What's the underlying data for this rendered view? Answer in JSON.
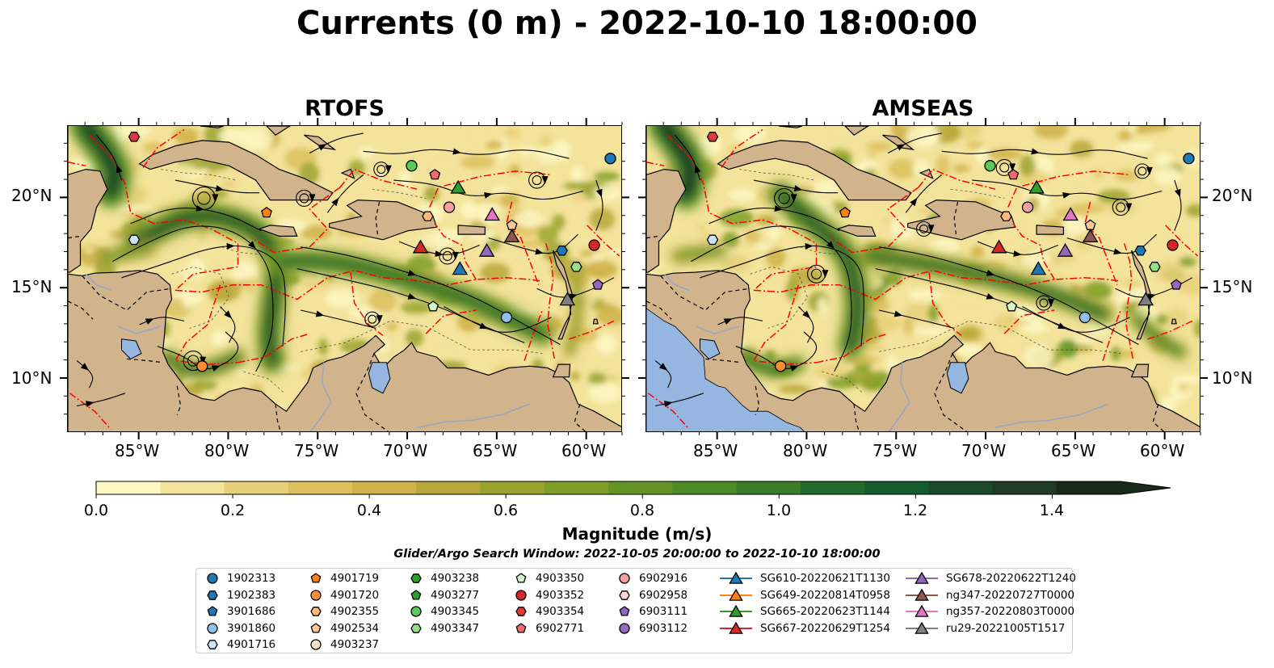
{
  "figure": {
    "title": "Currents (0 m) - 2022-10-10 18:00:00"
  },
  "panels": [
    {
      "title": "RTOFS"
    },
    {
      "title": "AMSEAS"
    }
  ],
  "axes": {
    "lon_ticks": [
      "85°W",
      "80°W",
      "75°W",
      "70°W",
      "65°W",
      "60°W"
    ],
    "lat_ticks": [
      "20°N",
      "15°N",
      "10°N"
    ],
    "lon_range": [
      -89,
      -58
    ],
    "lat_range": [
      7,
      24
    ]
  },
  "colorbar": {
    "label": "Magnitude (m/s)",
    "tick_labels": [
      "0.0",
      "0.2",
      "0.4",
      "0.6",
      "0.8",
      "1.0",
      "1.2",
      "1.4"
    ],
    "range": [
      0,
      1.6
    ],
    "extend": "max",
    "colors": [
      "#fdf7c2",
      "#f3e39b",
      "#e7d079",
      "#dcc05e",
      "#cfb249",
      "#b8a73a",
      "#9aa32f",
      "#7f9e26",
      "#649525",
      "#4e8a26",
      "#3a7c2a",
      "#236b2d",
      "#165c2d",
      "#1b4a2b",
      "#1f3a25",
      "#1a2a1a"
    ]
  },
  "search_window": "Glider/Argo Search Window: 2022-10-05 20:00:00 to 2022-10-10 18:00:00",
  "colors": {
    "land": "#d2b48c",
    "ocean": "#94b6e1",
    "eez": "#ff0000",
    "rivers": "#97a8bf"
  },
  "legend": [
    {
      "label": "1902313",
      "marker": "circle",
      "color": "#1f77b4"
    },
    {
      "label": "1902383",
      "marker": "hexagon",
      "color": "#1f77b4"
    },
    {
      "label": "3901686",
      "marker": "pentagon",
      "color": "#1f77b4"
    },
    {
      "label": "3901860",
      "marker": "circle",
      "color": "#8fc1ea"
    },
    {
      "label": "4901716",
      "marker": "hexagon",
      "color": "#cfe4f7"
    },
    {
      "label": "4901719",
      "marker": "pentagon",
      "color": "#ff7f0e"
    },
    {
      "label": "4901720",
      "marker": "circle",
      "color": "#ff8c2e"
    },
    {
      "label": "4902355",
      "marker": "hexagon",
      "color": "#ffb878"
    },
    {
      "label": "4902534",
      "marker": "pentagon",
      "color": "#ffc99a"
    },
    {
      "label": "4903237",
      "marker": "circle",
      "color": "#ffe3c8"
    },
    {
      "label": "4903238",
      "marker": "hexagon",
      "color": "#2ca02c"
    },
    {
      "label": "4903277",
      "marker": "pentagon",
      "color": "#2ca02c"
    },
    {
      "label": "4903345",
      "marker": "circle",
      "color": "#5cc95c"
    },
    {
      "label": "4903347",
      "marker": "hexagon",
      "color": "#98df8a"
    },
    {
      "label": "4903350",
      "marker": "pentagon",
      "color": "#d4f5c8"
    },
    {
      "label": "4903352",
      "marker": "circle",
      "color": "#d62728"
    },
    {
      "label": "4903354",
      "marker": "hexagon",
      "color": "#e0393a"
    },
    {
      "label": "6902771",
      "marker": "pentagon",
      "color": "#f06b6b"
    },
    {
      "label": "6902916",
      "marker": "circle",
      "color": "#f4a0a0"
    },
    {
      "label": "6902958",
      "marker": "hexagon",
      "color": "#ffd6d6"
    },
    {
      "label": "6903111",
      "marker": "pentagon",
      "color": "#9467bd"
    },
    {
      "label": "6903112",
      "marker": "circle",
      "color": "#9467bd"
    },
    {
      "label": "SG610-20220621T1130",
      "marker": "triangle",
      "color": "#1f77b4"
    },
    {
      "label": "SG649-20220814T0958",
      "marker": "triangle",
      "color": "#ff7f0e"
    },
    {
      "label": "SG665-20220623T1144",
      "marker": "triangle",
      "color": "#2ca02c"
    },
    {
      "label": "SG667-20220629T1254",
      "marker": "triangle",
      "color": "#d62728"
    },
    {
      "label": "SG678-20220622T1240",
      "marker": "triangle",
      "color": "#9467bd"
    },
    {
      "label": "ng347-20220727T0000",
      "marker": "triangle",
      "color": "#8c564b"
    },
    {
      "label": "ng357-20220803T0000",
      "marker": "triangle",
      "color": "#e377c2"
    },
    {
      "label": "ru29-20221005T1517",
      "marker": "triangle",
      "color": "#7f7f7f"
    }
  ],
  "platforms": [
    {
      "id": "4903354",
      "lon": -85.3,
      "lat": 23.4
    },
    {
      "id": "1902313",
      "lon": -58.7,
      "lat": 22.2
    },
    {
      "id": "4903345",
      "lon": -69.8,
      "lat": 21.8
    },
    {
      "id": "6902771",
      "lon": -68.5,
      "lat": 21.3
    },
    {
      "id": "SG665-20220623T1144",
      "lon": -67.2,
      "lat": 20.6
    },
    {
      "id": "6902916",
      "lon": -67.7,
      "lat": 19.5
    },
    {
      "id": "4901719",
      "lon": -77.9,
      "lat": 19.2
    },
    {
      "id": "4902355",
      "lon": -68.9,
      "lat": 19.0
    },
    {
      "id": "ng357-20220803T0000",
      "lon": -65.3,
      "lat": 19.1
    },
    {
      "id": "4902534",
      "lon": -64.2,
      "lat": 18.5
    },
    {
      "id": "ng347-20220727T0000",
      "lon": -64.2,
      "lat": 17.9
    },
    {
      "id": "4901716",
      "lon": -85.3,
      "lat": 17.7
    },
    {
      "id": "SG667-20220629T1254",
      "lon": -69.3,
      "lat": 17.3
    },
    {
      "id": "SG678-20220622T1240",
      "lon": -65.6,
      "lat": 17.1
    },
    {
      "id": "4903352",
      "lon": -59.6,
      "lat": 17.4
    },
    {
      "id": "1902383",
      "lon": -61.4,
      "lat": 17.1
    },
    {
      "id": "SG610-20220621T1130",
      "lon": -67.1,
      "lat": 16.1
    },
    {
      "id": "4903347",
      "lon": -60.6,
      "lat": 16.2
    },
    {
      "id": "6903111",
      "lon": -59.4,
      "lat": 15.2
    },
    {
      "id": "ru29-20221005T1517",
      "lon": -61.1,
      "lat": 14.4
    },
    {
      "id": "4903350",
      "lon": -68.6,
      "lat": 14.0
    },
    {
      "id": "3901860",
      "lon": -64.5,
      "lat": 13.4
    },
    {
      "id": "4901720",
      "lon": -81.5,
      "lat": 10.7
    }
  ]
}
